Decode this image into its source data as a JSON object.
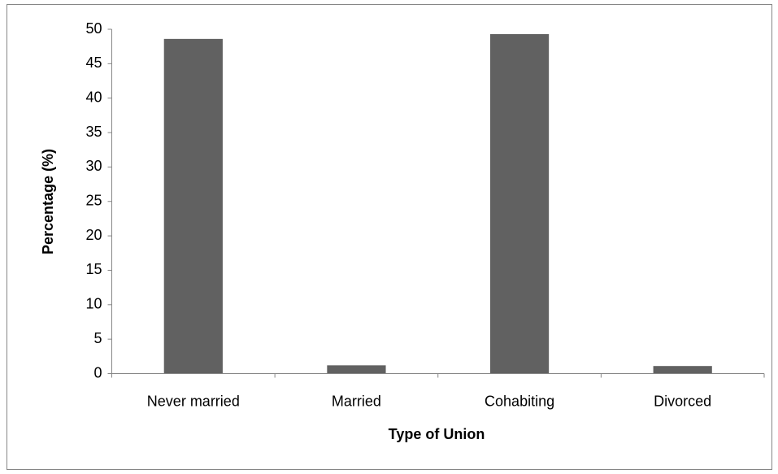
{
  "chart_data": {
    "type": "bar",
    "categories": [
      "Never married",
      "Married",
      "Cohabiting",
      "Divorced"
    ],
    "values": [
      48.6,
      1.2,
      49.3,
      1.1
    ],
    "color": "#616161",
    "xlabel": "Type of Union",
    "ylabel": "Percentage (%)",
    "ylim": [
      0,
      50
    ],
    "yticks": [
      0,
      5,
      10,
      15,
      20,
      25,
      30,
      35,
      40,
      45,
      50
    ],
    "grid": false
  }
}
